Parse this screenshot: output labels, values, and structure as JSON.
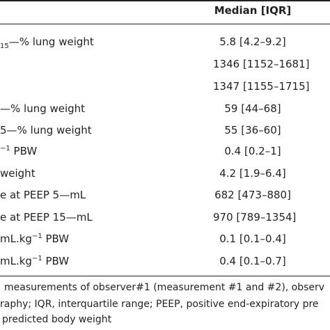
{
  "header": {
    "median_iqr": "Median [IQR]"
  },
  "rows": [
    {
      "label_sub": "15",
      "label_main": "—% lung weight",
      "value": "5.8 [4.2–9.2]"
    },
    {
      "value": "1346 [1152–1681]"
    },
    {
      "value": "1347 [1155–1715]"
    },
    {
      "label": "—% lung weight",
      "value": "59 [44–68]"
    },
    {
      "label": "5—% lung weight",
      "value": "55 [36–60]"
    },
    {
      "label_sup": "−1",
      "label_tail": " PBW",
      "value": "0.4 [0.2–1]"
    },
    {
      "label": "weight",
      "value": "4.2 [1.9–6.4]"
    },
    {
      "label": "e at PEEP 5—mL",
      "value": "682 [473–880]"
    },
    {
      "label": "e at PEEP 15—mL",
      "value": "970 [789–1354]"
    },
    {
      "label_main": "mL.kg",
      "label_sup": "−1",
      "label_tail": " PBW",
      "value": "0.1 [0.1–0.4]"
    },
    {
      "label_main": "mL.kg",
      "label_sup": "−1",
      "label_tail": " PBW",
      "value": "0.4 [0.1–0.7]"
    }
  ],
  "footnotes": {
    "line1": "measurements of observer#1 (measurement #1 and #2), observ",
    "line2": "raphy; IQR, interquartile range; PEEP, positive end-expiratory pre",
    "line3": "predicted body weight"
  }
}
